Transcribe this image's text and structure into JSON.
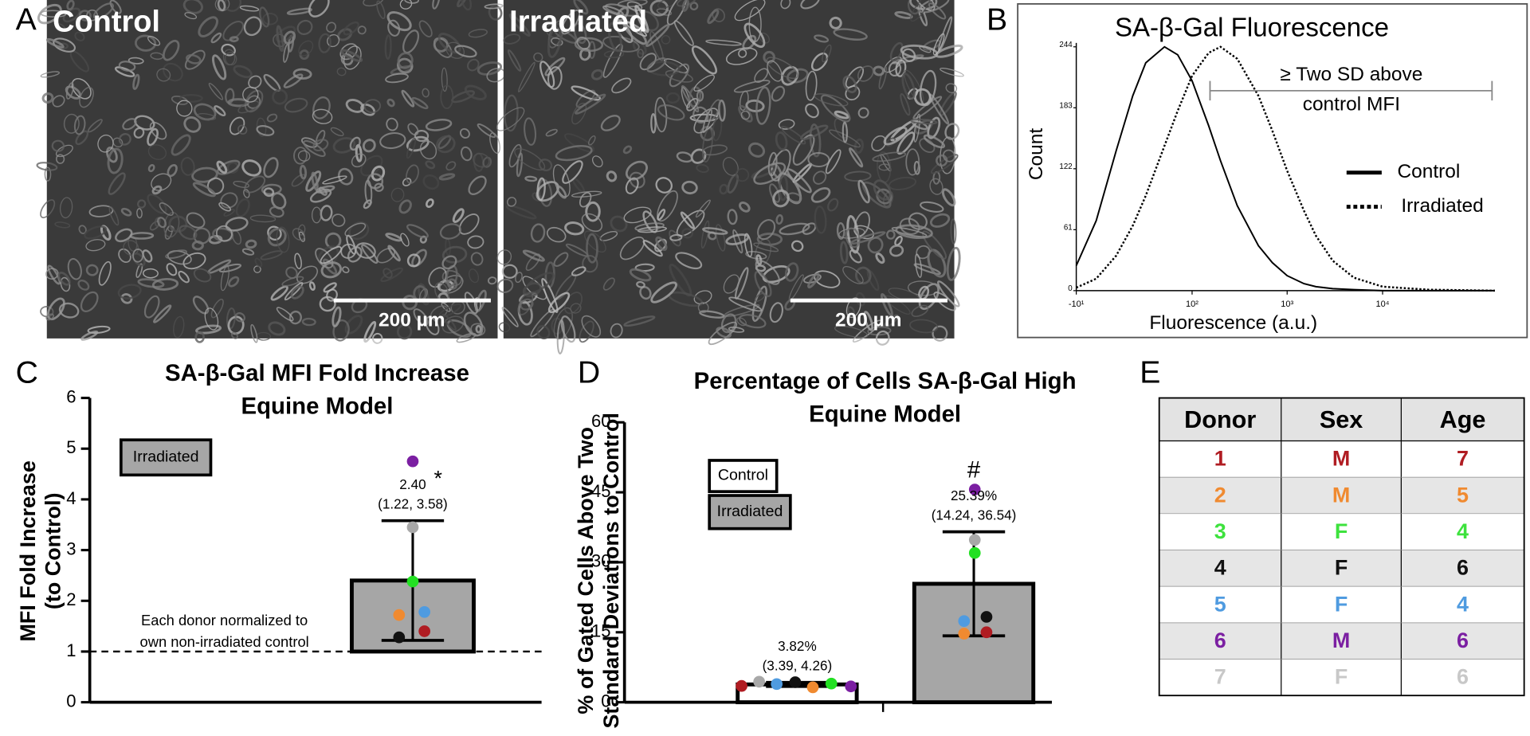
{
  "panel_labels": [
    "A",
    "B",
    "C",
    "D",
    "E"
  ],
  "micrographs": [
    {
      "label": "Control",
      "scale_bar": "200 µm"
    },
    {
      "label": "Irradiated",
      "scale_bar": "200 µm"
    }
  ],
  "chart_data": [
    {
      "type": "line",
      "title": "SA-β-Gal Fluorescence",
      "x_label": "Fluorescence (a.u.)",
      "y_label": "Count",
      "x_scale": "biexponential",
      "x": [
        -10,
        0,
        10,
        20,
        30,
        50,
        70,
        100,
        150,
        200,
        300,
        500,
        700,
        1000,
        1500,
        2000,
        3000,
        5000,
        10000,
        30000,
        150000
      ],
      "series": [
        {
          "name": "Control",
          "color": "#000000",
          "line_style": "solid",
          "values": [
            25,
            70,
            140,
            195,
            228,
            244,
            236,
            210,
            165,
            130,
            85,
            45,
            28,
            15,
            7,
            4,
            2,
            1,
            0,
            0,
            0
          ]
        },
        {
          "name": "Irradiated",
          "color": "#000000",
          "line_style": "dotted",
          "values": [
            3,
            12,
            35,
            65,
            95,
            145,
            180,
            215,
            238,
            244,
            232,
            195,
            160,
            120,
            80,
            55,
            30,
            13,
            4,
            1,
            0
          ]
        }
      ],
      "xlim": [
        -10,
        150000
      ],
      "xticks": [
        {
          "value": -10,
          "label": "-10¹"
        },
        {
          "value": 100,
          "label": "10²"
        },
        {
          "value": 1000,
          "label": "10³"
        },
        {
          "value": 10000,
          "label": "10⁴"
        }
      ],
      "ylim": [
        0,
        244
      ],
      "yticks": [
        0,
        61,
        122,
        183,
        244
      ],
      "annotation": [
        "≥ Two SD above",
        "control MFI"
      ],
      "annotation_range": [
        155,
        140000
      ],
      "legend": "right"
    },
    {
      "type": "bar",
      "title": [
        "SA-β-Gal MFI Fold Increase",
        "Equine Model"
      ],
      "y_label": [
        "MFI Fold Increase",
        "(to Control)"
      ],
      "categories": [
        null
      ],
      "series": [
        {
          "name": "Irradiated",
          "color": "#a6a6a6",
          "values": [
            2.4
          ],
          "value_labels": [
            "2.40"
          ],
          "ci_low": [
            1.22
          ],
          "ci_high": [
            3.58
          ],
          "ci_labels": [
            "(1.22, 3.58)"
          ],
          "significance": [
            "*"
          ],
          "points": [
            [
              1.4,
              1.72,
              2.38,
              1.28,
              1.78,
              4.75,
              3.45
            ]
          ]
        }
      ],
      "point_colors": [
        "#b01c22",
        "#f08a30",
        "#22e022",
        "#111111",
        "#4f9be0",
        "#7b1fa2",
        "#a8a8a8"
      ],
      "bar_base": 1,
      "reference_line": 1,
      "annotation": [
        "Each donor normalized to",
        "own non-irradiated control"
      ],
      "ylim": [
        0,
        6
      ],
      "yticks": [
        0,
        1,
        2,
        3,
        4,
        5,
        6
      ]
    },
    {
      "type": "bar",
      "title": [
        "Percentage of Cells SA-β-Gal High",
        "Equine Model"
      ],
      "y_label": [
        "% of Gated Cells Above Two",
        "Standard  Deviations to Control"
      ],
      "categories": [
        null,
        null
      ],
      "series": [
        {
          "name": "Control",
          "color": "#ffffff",
          "values": [
            3.82,
            null
          ],
          "value_labels": [
            "3.82%",
            null
          ],
          "ci_low": [
            3.39,
            null
          ],
          "ci_high": [
            4.26,
            null
          ],
          "ci_labels": [
            "(3.39, 4.26)",
            null
          ],
          "significance": [
            null,
            null
          ],
          "points": [
            [
              3.5,
              3.2,
              4.0,
              4.3,
              3.9,
              3.4,
              4.4
            ],
            null
          ]
        },
        {
          "name": "Irradiated",
          "color": "#a6a6a6",
          "values": [
            null,
            25.39
          ],
          "value_labels": [
            null,
            "25.39%"
          ],
          "ci_low": [
            null,
            14.24
          ],
          "ci_high": [
            null,
            36.54
          ],
          "ci_labels": [
            null,
            "(14.24, 36.54)"
          ],
          "significance": [
            null,
            "#"
          ],
          "points": [
            null,
            [
              15.0,
              14.7,
              32.0,
              18.3,
              17.4,
              45.6,
              34.8
            ]
          ]
        }
      ],
      "point_colors": [
        "#b01c22",
        "#f08a30",
        "#22e022",
        "#111111",
        "#4f9be0",
        "#7b1fa2",
        "#a8a8a8"
      ],
      "ylim": [
        0,
        60
      ],
      "yticks": [
        0,
        15,
        30,
        45,
        60
      ]
    }
  ],
  "table": {
    "header": [
      "Donor",
      "Sex",
      "Age"
    ],
    "rows": [
      [
        "1",
        "M",
        "7"
      ],
      [
        "2",
        "M",
        "5"
      ],
      [
        "3",
        "F",
        "4"
      ],
      [
        "4",
        "F",
        "6"
      ],
      [
        "5",
        "F",
        "4"
      ],
      [
        "6",
        "M",
        "6"
      ],
      [
        "7",
        "F",
        "6"
      ]
    ],
    "row_colors": [
      "#b01c22",
      "#f08a30",
      "#3de23d",
      "#111111",
      "#4f9be0",
      "#7b1fa2",
      "#c8c8c8"
    ]
  }
}
